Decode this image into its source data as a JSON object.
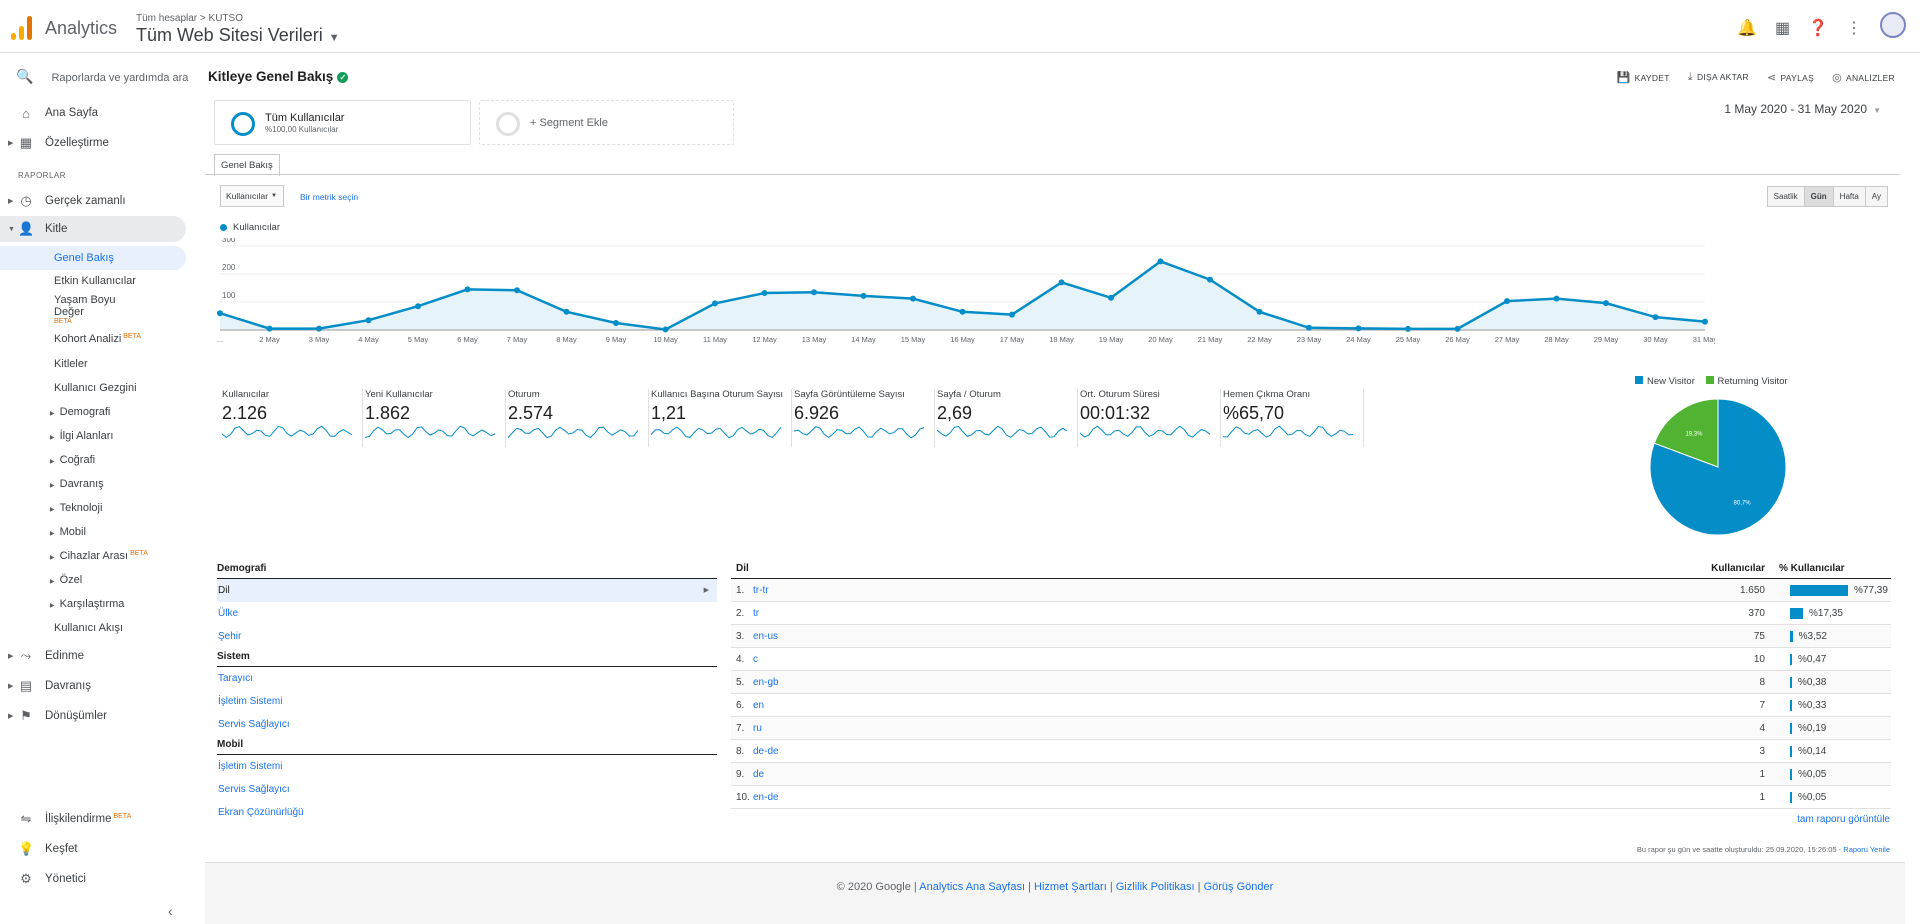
{
  "header": {
    "brand": "Analytics",
    "breadcrumb": "Tüm hesaplar > KUTSO",
    "property": "Tüm Web Sitesi Verileri"
  },
  "sidebar": {
    "search": "Raporlarda ve yardımda ara",
    "home": "Ana Sayfa",
    "customization": "Özelleştirme",
    "reports_header": "RAPORLAR",
    "realtime": "Gerçek zamanlı",
    "audience": "Kitle",
    "audience_items": {
      "overview": "Genel Bakış",
      "active_users": "Etkin Kullanıcılar",
      "lifetime_1": "Yaşam Boyu",
      "lifetime_2": "Değer",
      "cohort": "Kohort Analizi",
      "audiences": "Kitleler",
      "user_explorer": "Kullanıcı Gezgini",
      "demographics": "Demografi",
      "interests": "İlgi Alanları",
      "geo": "Coğrafi",
      "behavior": "Davranış",
      "technology": "Teknoloji",
      "mobile": "Mobil",
      "cross_device": "Cihazlar Arası",
      "custom": "Özel",
      "benchmarking": "Karşılaştırma",
      "users_flow": "Kullanıcı Akışı"
    },
    "acquisition": "Edinme",
    "behavior": "Davranış",
    "conversions": "Dönüşümler",
    "attribution": "İlişkilendirme",
    "discover": "Keşfet",
    "admin": "Yönetici",
    "beta": "BETA"
  },
  "page": {
    "title": "Kitleye Genel Bakış",
    "actions": [
      "KAYDET",
      "DIŞA AKTAR",
      "PAYLAŞ",
      "ANALİZLER"
    ],
    "segment1": {
      "title": "Tüm Kullanıcılar",
      "sub": "%100,00 Kullanıcılar"
    },
    "segment2": "+ Segment Ekle",
    "date_range": "1 May 2020 - 31 May 2020",
    "tab": "Genel Bakış",
    "metric_select": "Kullanıcılar",
    "metric_link": "Bir metrik seçin",
    "granularity": [
      "Saatlik",
      "Gün",
      "Hafta",
      "Ay"
    ],
    "legend": "Kullanıcılar"
  },
  "chart_data": {
    "type": "line",
    "series": [
      {
        "name": "Kullanıcılar",
        "values": [
          60,
          5,
          5,
          35,
          85,
          145,
          142,
          65,
          25,
          2,
          95,
          132,
          135,
          122,
          112,
          65,
          55,
          170,
          115,
          245,
          180,
          65,
          8,
          6,
          4,
          4,
          103,
          112,
          96,
          46,
          30
        ]
      }
    ],
    "x": [
      "...",
      "2 May",
      "3 May",
      "4 May",
      "5 May",
      "6 May",
      "7 May",
      "8 May",
      "9 May",
      "10 May",
      "11 May",
      "12 May",
      "13 May",
      "14 May",
      "15 May",
      "16 May",
      "17 May",
      "18 May",
      "19 May",
      "20 May",
      "21 May",
      "22 May",
      "23 May",
      "24 May",
      "25 May",
      "26 May",
      "27 May",
      "28 May",
      "29 May",
      "30 May",
      "31 May"
    ],
    "yticks": [
      100,
      200,
      300
    ],
    "ylim": [
      0,
      300
    ],
    "color": "#058dc7"
  },
  "metrics": [
    {
      "label": "Kullanıcılar",
      "value": "2.126"
    },
    {
      "label": "Yeni Kullanıcılar",
      "value": "1.862"
    },
    {
      "label": "Oturum",
      "value": "2.574"
    },
    {
      "label": "Kullanıcı Başına Oturum Sayısı",
      "value": "1,21"
    },
    {
      "label": "Sayfa Görüntüleme Sayısı",
      "value": "6.926"
    },
    {
      "label": "Sayfa / Oturum",
      "value": "2,69"
    },
    {
      "label": "Ort. Oturum Süresi",
      "value": "00:01:32"
    },
    {
      "label": "Hemen Çıkma Oranı",
      "value": "%65,70"
    }
  ],
  "pie": {
    "type": "pie",
    "labels": [
      "New Visitor",
      "Returning Visitor"
    ],
    "values": [
      80.7,
      19.3
    ],
    "value_labels": [
      "80,7%",
      "19,3%"
    ],
    "colors": [
      "#058dc7",
      "#50b432"
    ]
  },
  "demographics": {
    "header": "Demografi",
    "items": [
      "Dil",
      "Ülke",
      "Şehir"
    ],
    "system_header": "Sistem",
    "system_items": [
      "Tarayıcı",
      "İşletim Sistemi",
      "Servis Sağlayıcı"
    ],
    "mobile_header": "Mobil",
    "mobile_items": [
      "İşletim Sistemi",
      "Servis Sağlayıcı",
      "Ekran Çözünürlüğü"
    ]
  },
  "language_table": {
    "header": "Dil",
    "col_users": "Kullanıcılar",
    "col_pct": "% Kullanıcılar",
    "rows": [
      {
        "n": "1.",
        "lang": "tr-tr",
        "users": "1.650",
        "pct": "%77,39",
        "share": 77.39
      },
      {
        "n": "2.",
        "lang": "tr",
        "users": "370",
        "pct": "%17,35",
        "share": 17.35
      },
      {
        "n": "3.",
        "lang": "en-us",
        "users": "75",
        "pct": "%3,52",
        "share": 3.52
      },
      {
        "n": "4.",
        "lang": "c",
        "users": "10",
        "pct": "%0,47",
        "share": 0.47
      },
      {
        "n": "5.",
        "lang": "en-gb",
        "users": "8",
        "pct": "%0,38",
        "share": 0.38
      },
      {
        "n": "6.",
        "lang": "en",
        "users": "7",
        "pct": "%0,33",
        "share": 0.33
      },
      {
        "n": "7.",
        "lang": "ru",
        "users": "4",
        "pct": "%0,19",
        "share": 0.19
      },
      {
        "n": "8.",
        "lang": "de-de",
        "users": "3",
        "pct": "%0,14",
        "share": 0.14
      },
      {
        "n": "9.",
        "lang": "de",
        "users": "1",
        "pct": "%0,05",
        "share": 0.05
      },
      {
        "n": "10.",
        "lang": "en-de",
        "users": "1",
        "pct": "%0,05",
        "share": 0.05
      }
    ],
    "full_report": "tam raporu görüntüle"
  },
  "generated": {
    "text": "Bu rapor şu gün ve saatte oluşturuldu: 25.09.2020, 15:26:05 -",
    "refresh": "Raporu Yenile"
  },
  "footer": {
    "copyright": "© 2020 Google",
    "links": [
      "Analytics Ana Sayfası",
      "Hizmet Şartları",
      "Gizlilik Politikası",
      "Görüş Gönder"
    ]
  }
}
